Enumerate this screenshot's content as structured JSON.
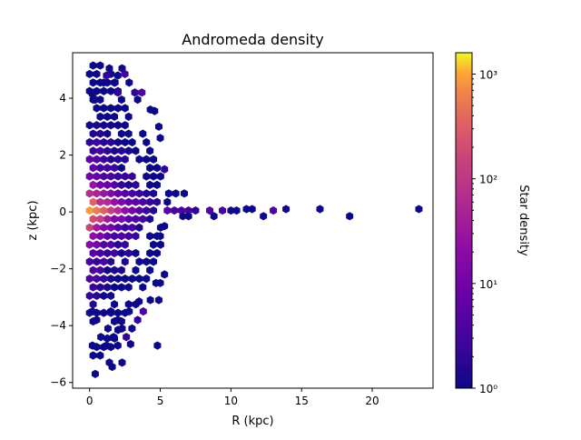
{
  "chart_data": {
    "type": "heatmap",
    "subtype": "hexbin",
    "title": "Andromeda density",
    "xlabel": "R (kpc)",
    "ylabel": "z (kpc)",
    "xlim": [
      -1.2,
      24.3
    ],
    "ylim": [
      -6.2,
      5.6
    ],
    "xticks": [
      0,
      5,
      10,
      15,
      20
    ],
    "yticks": [
      -6,
      -4,
      -2,
      0,
      2,
      4
    ],
    "grid": false,
    "colormap": "plasma",
    "colorbar": {
      "label": "Star density",
      "scale": "log",
      "range": [
        1,
        1600
      ],
      "ticks": [
        {
          "value": 1,
          "label": "10⁰"
        },
        {
          "value": 10,
          "label": "10¹"
        },
        {
          "value": 100,
          "label": "10²"
        },
        {
          "value": 1000,
          "label": "10³"
        }
      ]
    },
    "hex_radius_kpc": 0.29,
    "core": {
      "r_extent": [
        0,
        5.2
      ],
      "z_extent": [
        -5.7,
        5.1
      ],
      "peak": {
        "R": 0.3,
        "z": 0.05,
        "density": 1600
      }
    },
    "bins": [
      {
        "R": 1.4,
        "z": 5.05,
        "v": 1
      },
      {
        "R": 2.3,
        "z": 5.05,
        "v": 1
      },
      {
        "R": 1.2,
        "z": 4.8,
        "v": 2
      },
      {
        "R": 2.0,
        "z": 4.8,
        "v": 1
      },
      {
        "R": 2.5,
        "z": 4.85,
        "v": 3
      },
      {
        "R": 1.0,
        "z": 4.55,
        "v": 1
      },
      {
        "R": 1.8,
        "z": 4.55,
        "v": 1
      },
      {
        "R": 2.8,
        "z": 4.55,
        "v": 1
      },
      {
        "R": 0.2,
        "z": 4.15,
        "v": 1
      },
      {
        "R": 2.0,
        "z": 4.2,
        "v": 2
      },
      {
        "R": 3.2,
        "z": 4.2,
        "v": 2
      },
      {
        "R": 3.7,
        "z": 4.2,
        "v": 4
      },
      {
        "R": 0.4,
        "z": 3.95,
        "v": 1
      },
      {
        "R": 3.4,
        "z": 3.95,
        "v": 1
      },
      {
        "R": 4.3,
        "z": 3.6,
        "v": 1
      },
      {
        "R": 4.6,
        "z": 3.55,
        "v": 1
      },
      {
        "R": 4.9,
        "z": 3.0,
        "v": 1
      },
      {
        "R": 5.0,
        "z": 2.6,
        "v": 1
      },
      {
        "R": 5.3,
        "z": 1.5,
        "v": 2
      },
      {
        "R": 5.6,
        "z": 0.65,
        "v": 1
      },
      {
        "R": 6.1,
        "z": 0.65,
        "v": 1
      },
      {
        "R": 6.7,
        "z": 0.65,
        "v": 1
      },
      {
        "R": 5.5,
        "z": 0.35,
        "v": 1
      },
      {
        "R": 5.5,
        "z": 0.05,
        "v": 5
      },
      {
        "R": 6.0,
        "z": 0.05,
        "v": 3
      },
      {
        "R": 6.5,
        "z": 0.05,
        "v": 4
      },
      {
        "R": 7.0,
        "z": 0.05,
        "v": 3
      },
      {
        "R": 7.5,
        "z": 0.05,
        "v": 2
      },
      {
        "R": 8.5,
        "z": 0.05,
        "v": 4
      },
      {
        "R": 9.4,
        "z": 0.05,
        "v": 3
      },
      {
        "R": 10.0,
        "z": 0.05,
        "v": 1
      },
      {
        "R": 10.4,
        "z": 0.05,
        "v": 1
      },
      {
        "R": 11.1,
        "z": 0.1,
        "v": 1
      },
      {
        "R": 11.5,
        "z": 0.1,
        "v": 1
      },
      {
        "R": 13.0,
        "z": 0.05,
        "v": 4
      },
      {
        "R": 13.9,
        "z": 0.1,
        "v": 1
      },
      {
        "R": 16.3,
        "z": 0.1,
        "v": 1
      },
      {
        "R": 23.3,
        "z": 0.1,
        "v": 1
      },
      {
        "R": 6.6,
        "z": -0.15,
        "v": 1
      },
      {
        "R": 7.0,
        "z": -0.15,
        "v": 1
      },
      {
        "R": 8.8,
        "z": -0.15,
        "v": 1
      },
      {
        "R": 12.3,
        "z": -0.15,
        "v": 1
      },
      {
        "R": 18.4,
        "z": -0.15,
        "v": 1
      },
      {
        "R": 5.3,
        "z": -0.5,
        "v": 1
      },
      {
        "R": 5.0,
        "z": -0.85,
        "v": 1
      },
      {
        "R": 5.3,
        "z": -2.2,
        "v": 1
      },
      {
        "R": 5.0,
        "z": -2.5,
        "v": 1
      },
      {
        "R": 4.7,
        "z": -2.5,
        "v": 1
      },
      {
        "R": 4.9,
        "z": -3.1,
        "v": 1
      },
      {
        "R": 4.3,
        "z": -3.1,
        "v": 1
      },
      {
        "R": 3.5,
        "z": -3.15,
        "v": 1
      },
      {
        "R": 0.2,
        "z": -3.5,
        "v": 1
      },
      {
        "R": 1.5,
        "z": -3.5,
        "v": 1
      },
      {
        "R": 2.8,
        "z": -3.5,
        "v": 1
      },
      {
        "R": 3.8,
        "z": -3.5,
        "v": 4
      },
      {
        "R": 0.5,
        "z": -3.8,
        "v": 1
      },
      {
        "R": 2.0,
        "z": -3.8,
        "v": 1
      },
      {
        "R": 3.4,
        "z": -3.8,
        "v": 2
      },
      {
        "R": 1.3,
        "z": -4.1,
        "v": 1
      },
      {
        "R": 2.3,
        "z": -4.1,
        "v": 1
      },
      {
        "R": 3.0,
        "z": -4.1,
        "v": 1
      },
      {
        "R": 0.8,
        "z": -4.4,
        "v": 1
      },
      {
        "R": 1.7,
        "z": -4.4,
        "v": 1
      },
      {
        "R": 2.6,
        "z": -4.4,
        "v": 2
      },
      {
        "R": 1.2,
        "z": -4.7,
        "v": 1
      },
      {
        "R": 2.0,
        "z": -4.7,
        "v": 1
      },
      {
        "R": 2.9,
        "z": -4.65,
        "v": 1
      },
      {
        "R": 0.2,
        "z": -4.7,
        "v": 1
      },
      {
        "R": 4.8,
        "z": -4.7,
        "v": 1
      },
      {
        "R": 1.4,
        "z": -5.3,
        "v": 1
      },
      {
        "R": 2.3,
        "z": -5.3,
        "v": 1
      },
      {
        "R": 1.6,
        "z": -5.45,
        "v": 1
      },
      {
        "R": 0.4,
        "z": -5.7,
        "v": 1
      }
    ]
  }
}
